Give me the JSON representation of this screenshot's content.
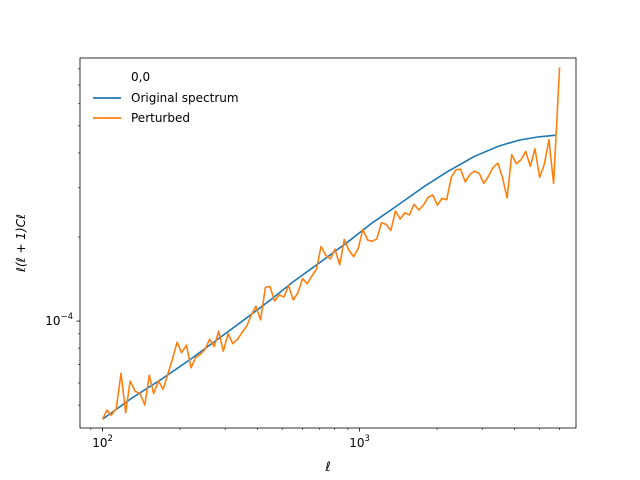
{
  "chart_data": {
    "type": "line",
    "title": "",
    "xlabel": "ℓ",
    "ylabel": "ℓ(ℓ + 1)Cℓ",
    "xscale": "log",
    "yscale": "log",
    "xlim": [
      81.7,
      6950
    ],
    "ylim": [
      4.14e-05,
      0.000875
    ],
    "x_tick_labels": [
      {
        "value": 100,
        "base": "10",
        "exp": "2"
      },
      {
        "value": 1000,
        "base": "10",
        "exp": "3"
      }
    ],
    "y_tick_labels": [
      {
        "value": 0.0001,
        "base": "10",
        "exp": "−4"
      }
    ],
    "grid": false,
    "legend": {
      "title": "0,0",
      "placement": "top-left",
      "entries": [
        "Original spectrum",
        "Perturbed"
      ]
    },
    "series": [
      {
        "name": "Original spectrum",
        "color": "#1f77b4",
        "x": [
          100,
          130,
          170,
          220,
          280,
          350,
          450,
          550,
          700,
          900,
          1100,
          1400,
          1800,
          2200,
          2800,
          3500,
          4200,
          5000,
          5800
        ],
        "y": [
          4.45e-05,
          5.3e-05,
          6.2e-05,
          7.3e-05,
          8.6e-05,
          0.0001,
          0.000119,
          0.000138,
          0.000162,
          0.000192,
          0.000222,
          0.000259,
          0.000305,
          0.000343,
          0.000389,
          0.000424,
          0.000445,
          0.000457,
          0.000463
        ]
      },
      {
        "name": "Perturbed",
        "color": "#ff7f0e",
        "x": [
          100,
          104,
          108,
          113,
          118,
          123,
          128,
          134,
          140,
          146,
          152,
          158,
          165,
          172,
          179,
          187,
          195,
          203,
          212,
          221,
          230,
          240,
          250,
          261,
          272,
          283,
          295,
          308,
          321,
          335,
          349,
          364,
          379,
          395,
          412,
          430,
          448,
          467,
          487,
          508,
          529,
          552,
          575,
          600,
          625,
          652,
          679,
          708,
          738,
          770,
          802,
          837,
          872,
          909,
          948,
          988,
          1030,
          1074,
          1120,
          1167,
          1217,
          1269,
          1323,
          1379,
          1438,
          1499,
          1563,
          1629,
          1699,
          1771,
          1846,
          1925,
          2007,
          2092,
          2181,
          2274,
          2371,
          2471,
          2577,
          2686,
          2800,
          2920,
          3044,
          3173,
          3308,
          3449,
          3596,
          3749,
          3908,
          4074,
          4248,
          4428,
          4617,
          4813,
          5018,
          5231,
          5454,
          5686,
          5928,
          6000
        ],
        "y": [
          4.45e-05,
          4.8e-05,
          4.6e-05,
          4.85e-05,
          6.5e-05,
          4.7e-05,
          6.1e-05,
          5.6e-05,
          5.5e-05,
          5e-05,
          6.4e-05,
          5.5e-05,
          6.1e-05,
          5.7e-05,
          6.4e-05,
          7.3e-05,
          8.4e-05,
          7.7e-05,
          8.2e-05,
          6.8e-05,
          7.4e-05,
          7.6e-05,
          7.9e-05,
          8.6e-05,
          8.1e-05,
          9.2e-05,
          7.8e-05,
          9e-05,
          8.3e-05,
          8.6e-05,
          9.1e-05,
          9.6e-05,
          0.000105,
          0.000113,
          0.000101,
          0.000132,
          0.000133,
          0.000118,
          0.000124,
          0.000122,
          0.000134,
          0.000119,
          0.000126,
          0.000142,
          0.000136,
          0.000145,
          0.000153,
          0.000185,
          0.000172,
          0.000167,
          0.000181,
          0.000159,
          0.000196,
          0.000179,
          0.00017,
          0.000182,
          0.000213,
          0.000195,
          0.000193,
          0.000197,
          0.000225,
          0.000222,
          0.000211,
          0.000248,
          0.000232,
          0.000244,
          0.00024,
          0.000262,
          0.00025,
          0.00026,
          0.000277,
          0.000283,
          0.00026,
          0.000275,
          0.000272,
          0.000327,
          0.000348,
          0.00035,
          0.000315,
          0.000335,
          0.000344,
          0.000338,
          0.000311,
          0.00033,
          0.000355,
          0.000368,
          0.000327,
          0.000276,
          0.000394,
          0.000366,
          0.000378,
          0.000405,
          0.000358,
          0.000414,
          0.000327,
          0.000364,
          0.000446,
          0.000311,
          0.000655,
          0.00081
        ]
      }
    ]
  }
}
